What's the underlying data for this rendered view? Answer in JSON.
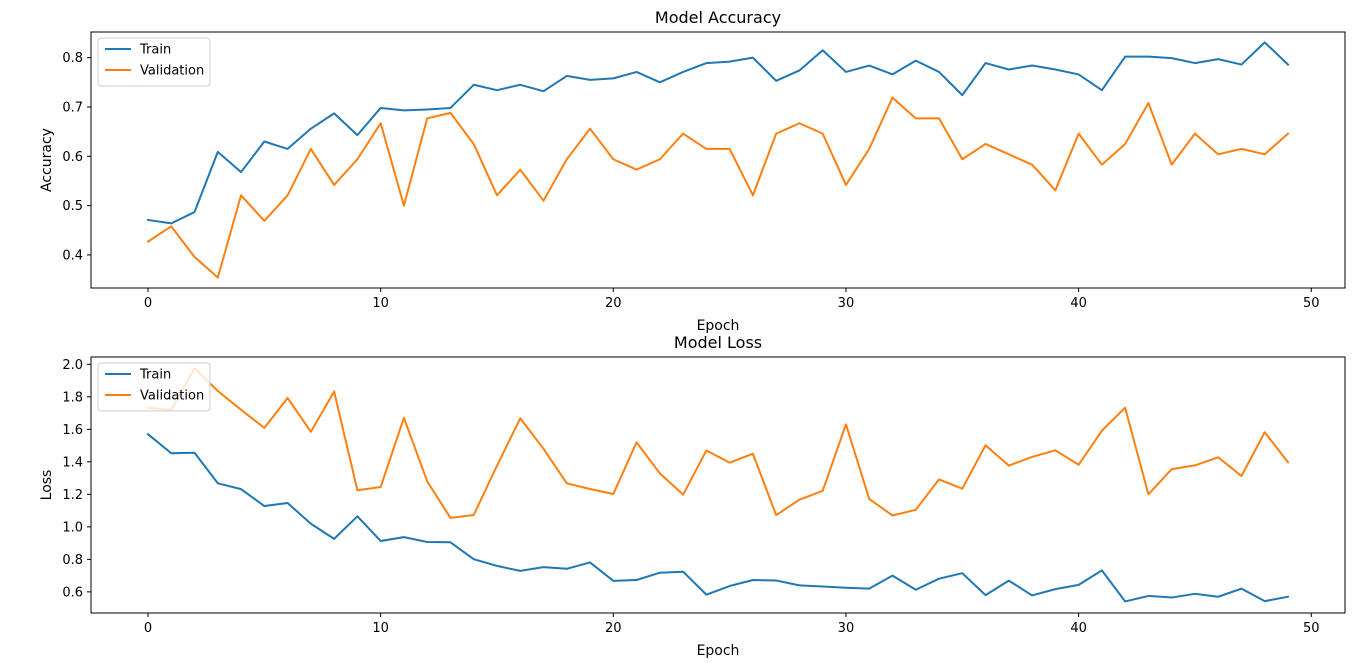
{
  "chart_data": [
    {
      "type": "line",
      "title": "Model Accuracy",
      "xlabel": "Epoch",
      "ylabel": "Accuracy",
      "xlim": [
        -2.45,
        51.45
      ],
      "ylim": [
        0.333,
        0.852
      ],
      "xticks": [
        0,
        10,
        20,
        30,
        40,
        50
      ],
      "yticks": [
        0.4,
        0.5,
        0.6,
        0.7,
        0.8
      ],
      "grid": false,
      "legend": "top-left",
      "x": [
        0,
        1,
        2,
        3,
        4,
        5,
        6,
        7,
        8,
        9,
        10,
        11,
        12,
        13,
        14,
        15,
        16,
        17,
        18,
        19,
        20,
        21,
        22,
        23,
        24,
        25,
        26,
        27,
        28,
        29,
        30,
        31,
        32,
        33,
        34,
        35,
        36,
        37,
        38,
        39,
        40,
        41,
        42,
        43,
        44,
        45,
        46,
        47,
        48,
        49
      ],
      "series": [
        {
          "name": "Train",
          "color": "#1f77b4",
          "values": [
            0.471,
            0.464,
            0.487,
            0.609,
            0.568,
            0.63,
            0.615,
            0.656,
            0.687,
            0.643,
            0.698,
            0.693,
            0.695,
            0.698,
            0.745,
            0.734,
            0.745,
            0.732,
            0.763,
            0.755,
            0.758,
            0.771,
            0.75,
            0.771,
            0.789,
            0.792,
            0.8,
            0.753,
            0.774,
            0.815,
            0.771,
            0.784,
            0.766,
            0.794,
            0.771,
            0.724,
            0.789,
            0.776,
            0.784,
            0.776,
            0.766,
            0.734,
            0.802,
            0.802,
            0.799,
            0.789,
            0.797,
            0.786,
            0.831,
            0.786
          ]
        },
        {
          "name": "Validation",
          "color": "#ff7f0e",
          "values": [
            0.427,
            0.458,
            0.396,
            0.354,
            0.521,
            0.469,
            0.521,
            0.615,
            0.542,
            0.594,
            0.667,
            0.5,
            0.677,
            0.688,
            0.625,
            0.521,
            0.573,
            0.51,
            0.594,
            0.656,
            0.594,
            0.573,
            0.594,
            0.646,
            0.615,
            0.615,
            0.521,
            0.646,
            0.667,
            0.646,
            0.542,
            0.615,
            0.719,
            0.677,
            0.677,
            0.594,
            0.625,
            0.604,
            0.583,
            0.531,
            0.646,
            0.583,
            0.625,
            0.708,
            0.583,
            0.646,
            0.604,
            0.615,
            0.604,
            0.646
          ]
        }
      ]
    },
    {
      "type": "line",
      "title": "Model Loss",
      "xlabel": "Epoch",
      "ylabel": "Loss",
      "xlim": [
        -2.45,
        51.45
      ],
      "ylim": [
        0.47,
        2.045
      ],
      "xticks": [
        0,
        10,
        20,
        30,
        40,
        50
      ],
      "yticks": [
        0.6,
        0.8,
        1.0,
        1.2,
        1.4,
        1.6,
        1.8,
        2.0
      ],
      "grid": false,
      "legend": "top-left",
      "x": [
        0,
        1,
        2,
        3,
        4,
        5,
        6,
        7,
        8,
        9,
        10,
        11,
        12,
        13,
        14,
        15,
        16,
        17,
        18,
        19,
        20,
        21,
        22,
        23,
        24,
        25,
        26,
        27,
        28,
        29,
        30,
        31,
        32,
        33,
        34,
        35,
        36,
        37,
        38,
        39,
        40,
        41,
        42,
        43,
        44,
        45,
        46,
        47,
        48,
        49
      ],
      "series": [
        {
          "name": "Train",
          "color": "#1f77b4",
          "values": [
            1.57,
            1.453,
            1.456,
            1.268,
            1.232,
            1.128,
            1.147,
            1.019,
            0.926,
            1.065,
            0.913,
            0.937,
            0.907,
            0.905,
            0.801,
            0.76,
            0.729,
            0.752,
            0.742,
            0.781,
            0.668,
            0.673,
            0.718,
            0.724,
            0.583,
            0.636,
            0.673,
            0.67,
            0.64,
            0.633,
            0.625,
            0.62,
            0.7,
            0.613,
            0.681,
            0.715,
            0.58,
            0.669,
            0.578,
            0.617,
            0.643,
            0.732,
            0.541,
            0.575,
            0.565,
            0.588,
            0.57,
            0.62,
            0.543,
            0.57
          ]
        },
        {
          "name": "Validation",
          "color": "#ff7f0e",
          "values": [
            1.732,
            1.72,
            1.975,
            1.836,
            1.72,
            1.609,
            1.793,
            1.585,
            1.833,
            1.225,
            1.245,
            1.671,
            1.28,
            1.055,
            1.073,
            1.376,
            1.668,
            1.48,
            1.268,
            1.233,
            1.202,
            1.52,
            1.329,
            1.198,
            1.47,
            1.395,
            1.45,
            1.072,
            1.167,
            1.222,
            1.631,
            1.172,
            1.07,
            1.105,
            1.292,
            1.235,
            1.502,
            1.377,
            1.43,
            1.471,
            1.382,
            1.592,
            1.733,
            1.2,
            1.355,
            1.378,
            1.428,
            1.313,
            1.582,
            1.398
          ]
        }
      ]
    }
  ]
}
